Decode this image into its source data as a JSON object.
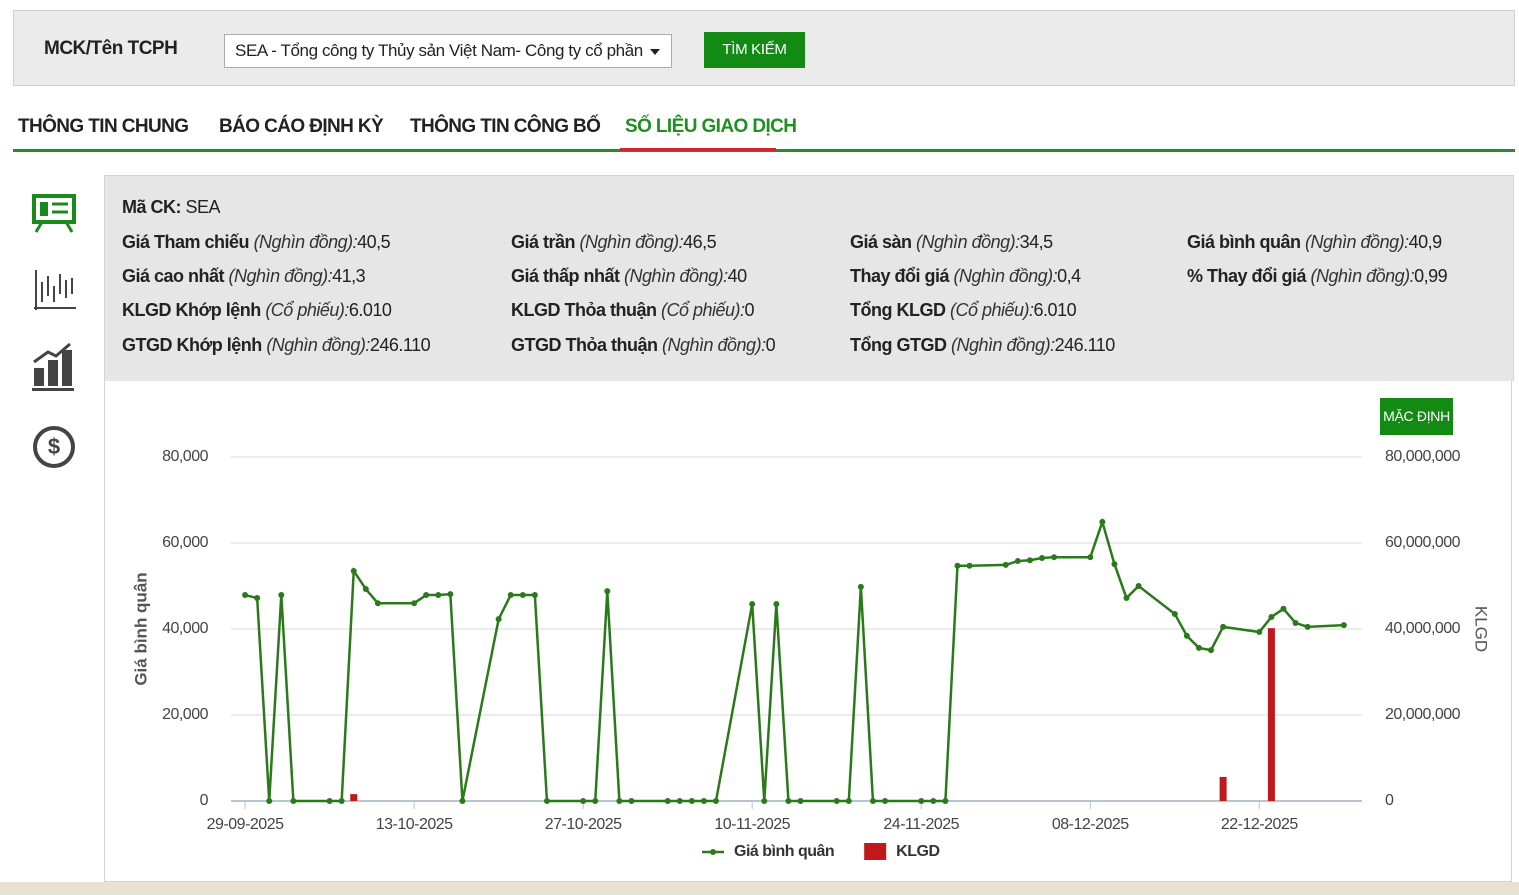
{
  "search": {
    "label": "MCK/Tên TCPH",
    "selected": "SEA - Tổng công ty Thủy sản Việt Nam- Công ty cổ phần",
    "button": "TÌM KIẾM"
  },
  "tabs": [
    "THÔNG TIN CHUNG",
    "BÁO CÁO ĐỊNH KỲ",
    "THÔNG TIN CÔNG BỐ",
    "SỐ LIỆU GIAO DỊCH"
  ],
  "active_tab": 3,
  "info": {
    "code_label": "Mã CK:",
    "code": "SEA",
    "rows": [
      [
        {
          "label": "Giá Tham chiếu",
          "unit": "(Nghìn đồng):",
          "value": "40,5"
        },
        {
          "label": "Giá trần",
          "unit": "(Nghìn đồng):",
          "value": "46,5"
        },
        {
          "label": "Giá sàn",
          "unit": "(Nghìn đồng):",
          "value": "34,5"
        },
        {
          "label": "Giá bình quân",
          "unit": "(Nghìn đồng):",
          "value": "40,9"
        }
      ],
      [
        {
          "label": "Giá cao nhất",
          "unit": "(Nghìn đồng):",
          "value": "41,3"
        },
        {
          "label": "Giá thấp nhất",
          "unit": "(Nghìn đồng):",
          "value": "40"
        },
        {
          "label": "Thay đổi giá",
          "unit": "(Nghìn đồng):",
          "value": "0,4"
        },
        {
          "label": "% Thay đổi giá",
          "unit": "(Nghìn đồng):",
          "value": "0,99"
        }
      ],
      [
        {
          "label": "KLGD Khớp lệnh",
          "unit": "(Cổ phiếu):",
          "value": "6.010"
        },
        {
          "label": "KLGD Thỏa thuận",
          "unit": "(Cổ phiếu):",
          "value": "0"
        },
        {
          "label": "Tổng KLGD",
          "unit": "(Cổ phiếu):",
          "value": "6.010"
        }
      ],
      [
        {
          "label": "GTGD Khớp lệnh",
          "unit": "(Nghìn đồng):",
          "value": "246.110"
        },
        {
          "label": "GTGD Thỏa thuận",
          "unit": "(Nghìn đồng):",
          "value": "0"
        },
        {
          "label": "Tổng GTGD",
          "unit": "(Nghìn đồng):",
          "value": "246.110"
        }
      ]
    ]
  },
  "reset_button": "MẶC ĐỊNH",
  "chart_data": {
    "type": "combo",
    "y_label": "Giá bình quân",
    "y2_label": "KLGD",
    "xlim": [
      "28-09-2025",
      "31-12-2025"
    ],
    "xticks": [
      "29-09-2025",
      "13-10-2025",
      "27-10-2025",
      "10-11-2025",
      "24-11-2025",
      "08-12-2025",
      "22-12-2025"
    ],
    "ylim": [
      0,
      80000
    ],
    "yticks": [
      0,
      {
        "value": 20000,
        "label": "20,000"
      },
      {
        "value": 40000,
        "label": "40,000"
      },
      {
        "value": 60000,
        "label": "60,000"
      },
      {
        "value": 80000,
        "label": "80,000"
      }
    ],
    "y2lim": [
      0,
      80000000
    ],
    "y2ticks": [
      0,
      {
        "value": 20000000,
        "label": "20,000,000"
      },
      {
        "value": 40000000,
        "label": "40,000,000"
      },
      {
        "value": 60000000,
        "label": "60,000,000"
      },
      {
        "value": 80000000,
        "label": "80,000,000"
      }
    ],
    "grid": true,
    "series": [
      {
        "name": "Giá bình quân",
        "type": "line",
        "color": "#2a7a1c",
        "x": [
          "29-09-2025",
          "30-09-2025",
          "01-10-2025",
          "02-10-2025",
          "03-10-2025",
          "06-10-2025",
          "07-10-2025",
          "08-10-2025",
          "09-10-2025",
          "10-10-2025",
          "13-10-2025",
          "14-10-2025",
          "15-10-2025",
          "16-10-2025",
          "17-10-2025",
          "20-10-2025",
          "21-10-2025",
          "22-10-2025",
          "23-10-2025",
          "24-10-2025",
          "27-10-2025",
          "28-10-2025",
          "29-10-2025",
          "30-10-2025",
          "31-10-2025",
          "03-11-2025",
          "04-11-2025",
          "05-11-2025",
          "06-11-2025",
          "07-11-2025",
          "10-11-2025",
          "11-11-2025",
          "12-11-2025",
          "13-11-2025",
          "14-11-2025",
          "17-11-2025",
          "18-11-2025",
          "19-11-2025",
          "20-11-2025",
          "21-11-2025",
          "24-11-2025",
          "25-11-2025",
          "26-11-2025",
          "27-11-2025",
          "28-11-2025",
          "01-12-2025",
          "02-12-2025",
          "03-12-2025",
          "04-12-2025",
          "05-12-2025",
          "08-12-2025",
          "09-12-2025",
          "10-12-2025",
          "11-12-2025",
          "12-12-2025",
          "15-12-2025",
          "16-12-2025",
          "17-12-2025",
          "18-12-2025",
          "19-12-2025",
          "22-12-2025",
          "23-12-2025",
          "24-12-2025",
          "25-12-2025",
          "26-12-2025",
          "29-12-2025"
        ],
        "values": [
          47900,
          47200,
          0,
          47900,
          0,
          0,
          0,
          53500,
          49300,
          46000,
          46000,
          47900,
          47900,
          48100,
          0,
          42300,
          47900,
          47900,
          47900,
          0,
          0,
          0,
          48800,
          0,
          0,
          0,
          0,
          0,
          0,
          0,
          45800,
          0,
          45800,
          0,
          0,
          0,
          0,
          49800,
          0,
          0,
          0,
          0,
          0,
          54700,
          54700,
          54900,
          55800,
          56000,
          56500,
          56700,
          56700,
          64900,
          55100,
          47200,
          50000,
          43500,
          38400,
          35600,
          35100,
          40500,
          39300,
          42800,
          44700,
          41400,
          40500,
          40900
        ]
      },
      {
        "name": "KLGD",
        "type": "bar",
        "axis": "y2",
        "color": "#c0191c",
        "x": [
          "08-10-2025",
          "19-12-2025",
          "23-12-2025"
        ],
        "values": [
          1600000,
          5600000,
          40200000
        ]
      }
    ]
  }
}
